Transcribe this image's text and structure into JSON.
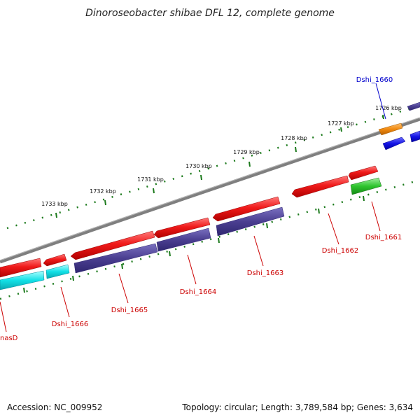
{
  "title": "Dinoroseobacter shibae DFL 12, complete genome",
  "footer": {
    "accession": "Accession: NC_009952",
    "summary": "Topology: circular; Length: 3,789,584 bp; Genes: 3,634"
  },
  "ticks": [
    "1726 kbp",
    "1727 kbp",
    "1728 kbp",
    "1729 kbp",
    "1730 kbp",
    "1731 kbp",
    "1732 kbp",
    "1733 kbp"
  ],
  "genes": {
    "dshi_1660": "Dshi_1660",
    "dshi_1661": "Dshi_1661",
    "dshi_1662": "Dshi_1662",
    "dshi_1663": "Dshi_1663",
    "dshi_1664": "Dshi_1664",
    "dshi_1665": "Dshi_1665",
    "dshi_1666": "Dshi_1666",
    "nasd": "nasD"
  },
  "colors": {
    "backbone": "#7f7f7f",
    "cds_red": "#e8141c",
    "cds_navy": "#4b3f91",
    "cds_cyan": "#12e0e6",
    "cds_orange": "#f08a10",
    "cds_blue": "#1414e6",
    "cds_green": "#2ec42e",
    "tick_green": "#1c7a1c",
    "label_red": "#cc0000",
    "label_blue": "#0000cc"
  }
}
